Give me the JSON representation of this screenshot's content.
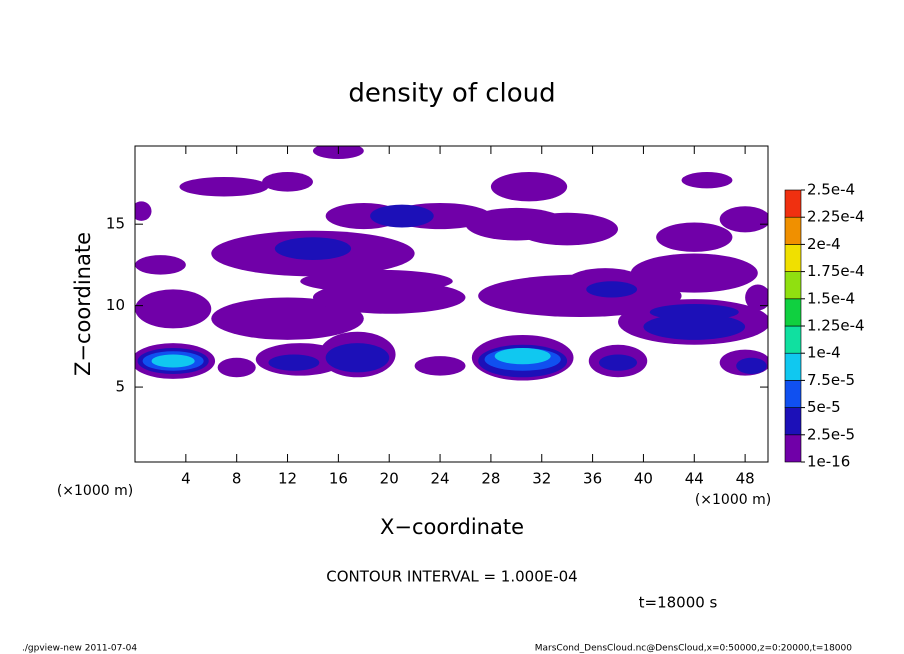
{
  "chart_data": {
    "type": "contour",
    "title": "density of cloud",
    "x_label": "X−coordinate",
    "y_label": "Z−coordinate",
    "x_unit": "(×1000 m)",
    "y_unit": "(×1000 m)",
    "contour_interval": "CONTOUR INTERVAL = 1.000E-04",
    "time_label": "t=18000 s",
    "footer_left": "./gpview-new   2011-07-04",
    "footer_right": "MarsCond_DensCloud.nc@DensCloud,x=0:50000,z=0:20000,t=18000",
    "xlim": [
      0,
      49.8
    ],
    "ylim": [
      0.4,
      19.8
    ],
    "xticks": [
      4,
      8,
      12,
      16,
      20,
      24,
      28,
      32,
      36,
      40,
      44,
      48
    ],
    "yticks": [
      5,
      10,
      15
    ],
    "levels": [
      {
        "value": 1e-16,
        "label": "1e-16"
      },
      {
        "value": 2.5e-05,
        "label": "2.5e-5"
      },
      {
        "value": 5e-05,
        "label": "5e-5"
      },
      {
        "value": 7.5e-05,
        "label": "7.5e-5"
      },
      {
        "value": 0.0001,
        "label": "1e-4"
      },
      {
        "value": 0.000125,
        "label": "1.25e-4"
      },
      {
        "value": 0.00015,
        "label": "1.5e-4"
      },
      {
        "value": 0.000175,
        "label": "1.75e-4"
      },
      {
        "value": 0.0002,
        "label": "2e-4"
      },
      {
        "value": 0.000225,
        "label": "2.25e-4"
      },
      {
        "value": 0.00025,
        "label": "2.5e-4"
      }
    ],
    "level_colors": [
      "#7000a8",
      "#1c10b8",
      "#1050f0",
      "#10c8f0",
      "#10e0a0",
      "#10d040",
      "#90e010",
      "#f0e000",
      "#f09000",
      "#f03010"
    ],
    "patches": [
      {
        "x": 3,
        "z": 6.6,
        "rx": 3.3,
        "rz": 1.1,
        "value": 1e-05
      },
      {
        "x": 8,
        "z": 6.2,
        "rx": 1.5,
        "rz": 0.6,
        "value": 1e-05
      },
      {
        "x": 13,
        "z": 6.7,
        "rx": 3.5,
        "rz": 1.0,
        "value": 1e-05
      },
      {
        "x": 17.5,
        "z": 7,
        "rx": 3,
        "rz": 1.4,
        "value": 1e-05
      },
      {
        "x": 24,
        "z": 6.3,
        "rx": 2,
        "rz": 0.6,
        "value": 1e-05
      },
      {
        "x": 30.5,
        "z": 6.8,
        "rx": 4,
        "rz": 1.4,
        "value": 1e-05
      },
      {
        "x": 38,
        "z": 6.6,
        "rx": 2.3,
        "rz": 1,
        "value": 1e-05
      },
      {
        "x": 48,
        "z": 6.5,
        "rx": 2,
        "rz": 0.8,
        "value": 1e-05
      },
      {
        "x": 3,
        "z": 9.8,
        "rx": 3,
        "rz": 1.2,
        "value": 1e-05
      },
      {
        "x": 12,
        "z": 9.2,
        "rx": 6,
        "rz": 1.3,
        "value": 1e-05
      },
      {
        "x": 20,
        "z": 10.5,
        "rx": 6,
        "rz": 1,
        "value": 1e-05
      },
      {
        "x": 35,
        "z": 10.6,
        "rx": 8,
        "rz": 1.3,
        "value": 1e-05
      },
      {
        "x": 44,
        "z": 9,
        "rx": 6,
        "rz": 1.4,
        "value": 1e-05
      },
      {
        "x": 49,
        "z": 10.5,
        "rx": 1,
        "rz": 0.8,
        "value": 1e-05
      },
      {
        "x": 2,
        "z": 12.5,
        "rx": 2,
        "rz": 0.6,
        "value": 1e-05
      },
      {
        "x": 14,
        "z": 13.2,
        "rx": 8,
        "rz": 1.4,
        "value": 1e-05
      },
      {
        "x": 19,
        "z": 11.5,
        "rx": 6,
        "rz": 0.7,
        "value": 1e-05
      },
      {
        "x": 37,
        "z": 11.5,
        "rx": 3,
        "rz": 0.8,
        "value": 1e-05
      },
      {
        "x": 44,
        "z": 12,
        "rx": 5,
        "rz": 1.2,
        "value": 1e-05
      },
      {
        "x": 44,
        "z": 14.2,
        "rx": 3,
        "rz": 0.9,
        "value": 1e-05
      },
      {
        "x": 30,
        "z": 15,
        "rx": 4,
        "rz": 1,
        "value": 1e-05
      },
      {
        "x": 24,
        "z": 15.5,
        "rx": 4,
        "rz": 0.8,
        "value": 1e-05
      },
      {
        "x": 18,
        "z": 15.5,
        "rx": 3,
        "rz": 0.8,
        "value": 1e-05
      },
      {
        "x": 34,
        "z": 14.7,
        "rx": 4,
        "rz": 1,
        "value": 1e-05
      },
      {
        "x": 48,
        "z": 15.3,
        "rx": 2,
        "rz": 0.8,
        "value": 1e-05
      },
      {
        "x": 7,
        "z": 17.3,
        "rx": 3.5,
        "rz": 0.6,
        "value": 1e-05
      },
      {
        "x": 12,
        "z": 17.6,
        "rx": 2,
        "rz": 0.6,
        "value": 1e-05
      },
      {
        "x": 16,
        "z": 19.5,
        "rx": 2,
        "rz": 0.5,
        "value": 1e-05
      },
      {
        "x": 31,
        "z": 17.3,
        "rx": 3,
        "rz": 0.9,
        "value": 1e-05
      },
      {
        "x": 45,
        "z": 17.7,
        "rx": 2,
        "rz": 0.5,
        "value": 1e-05
      },
      {
        "x": 0.5,
        "z": 15.8,
        "rx": 0.8,
        "rz": 0.6,
        "value": 1e-05
      },
      {
        "x": 3,
        "z": 6.6,
        "rx": 2.8,
        "rz": 0.8,
        "value": 3.5e-05
      },
      {
        "x": 12.5,
        "z": 6.5,
        "rx": 2,
        "rz": 0.5,
        "value": 3.5e-05
      },
      {
        "x": 17.5,
        "z": 6.8,
        "rx": 2.5,
        "rz": 0.9,
        "value": 3.5e-05
      },
      {
        "x": 30.5,
        "z": 6.6,
        "rx": 3.5,
        "rz": 1.0,
        "value": 3.5e-05
      },
      {
        "x": 38,
        "z": 6.5,
        "rx": 1.5,
        "rz": 0.5,
        "value": 3.5e-05
      },
      {
        "x": 48.5,
        "z": 6.3,
        "rx": 1.2,
        "rz": 0.5,
        "value": 3.5e-05
      },
      {
        "x": 44,
        "z": 8.7,
        "rx": 4,
        "rz": 0.8,
        "value": 3.5e-05
      },
      {
        "x": 44,
        "z": 9.6,
        "rx": 3.5,
        "rz": 0.5,
        "value": 3.5e-05
      },
      {
        "x": 14,
        "z": 13.5,
        "rx": 3,
        "rz": 0.7,
        "value": 3.5e-05
      },
      {
        "x": 21,
        "z": 15.5,
        "rx": 2.5,
        "rz": 0.7,
        "value": 3.5e-05
      },
      {
        "x": 37.5,
        "z": 11,
        "rx": 2,
        "rz": 0.5,
        "value": 3.5e-05
      },
      {
        "x": 3,
        "z": 6.6,
        "rx": 2.4,
        "rz": 0.6,
        "value": 6e-05
      },
      {
        "x": 30.5,
        "z": 6.7,
        "rx": 3,
        "rz": 0.7,
        "value": 6e-05
      },
      {
        "x": 3,
        "z": 6.6,
        "rx": 1.7,
        "rz": 0.4,
        "value": 8.5e-05
      },
      {
        "x": 30.5,
        "z": 6.9,
        "rx": 2.2,
        "rz": 0.5,
        "value": 8.5e-05
      }
    ]
  }
}
